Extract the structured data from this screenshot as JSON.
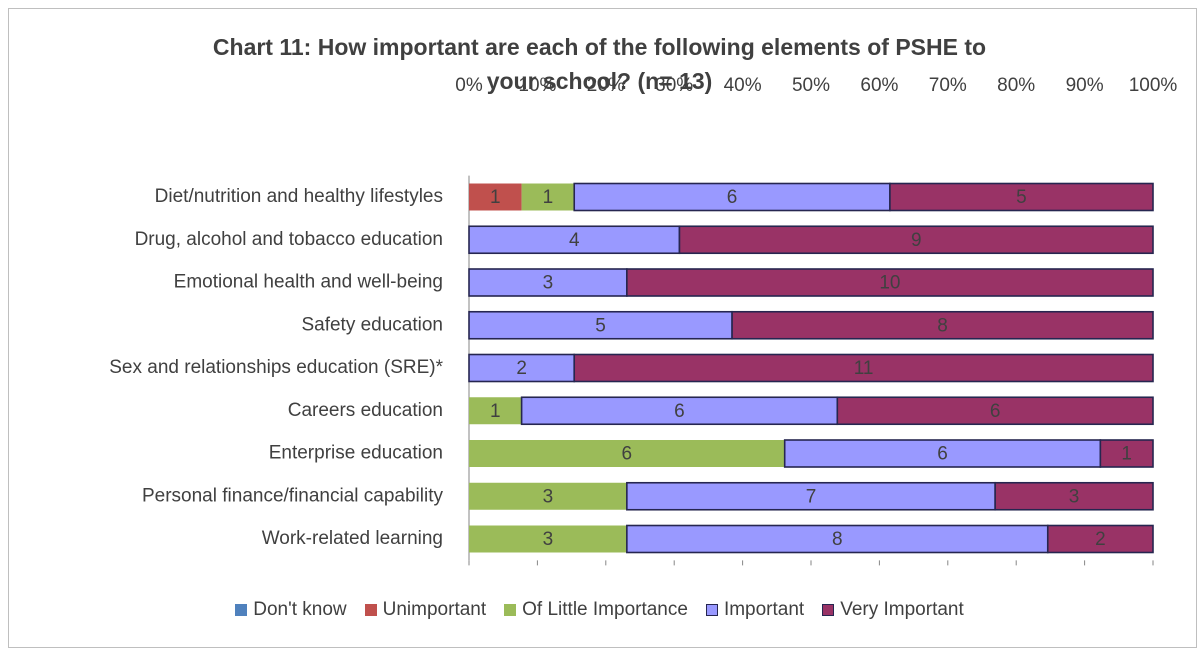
{
  "chart_data": {
    "type": "bar",
    "orientation": "horizontal",
    "stacked": "percent",
    "title_lines": [
      "Chart 11: How important are each of the following elements of PSHE to",
      "your school? (n= 13)"
    ],
    "x_ticks": [
      "0%",
      "10%",
      "20%",
      "30%",
      "40%",
      "50%",
      "60%",
      "70%",
      "80%",
      "90%",
      "100%"
    ],
    "xlim": [
      0,
      100
    ],
    "x_axis_position": "top",
    "legend_position": "bottom",
    "grid": false,
    "categories": [
      "Diet/nutrition and healthy lifestyles",
      "Drug, alcohol and tobacco education",
      "Emotional health and well-being",
      "Safety education",
      "Sex and relationships education (SRE)*",
      "Careers education",
      "Enterprise education",
      "Personal finance/financial capability",
      "Work-related learning"
    ],
    "series": [
      {
        "name": "Don't know",
        "color": "#4f81bd",
        "outlined": false,
        "values": [
          0,
          0,
          0,
          0,
          0,
          0,
          0,
          0,
          0
        ]
      },
      {
        "name": "Unimportant",
        "color": "#c0504d",
        "outlined": false,
        "values": [
          1,
          0,
          0,
          0,
          0,
          0,
          0,
          0,
          0
        ]
      },
      {
        "name": "Of Little Importance",
        "color": "#9bbb59",
        "outlined": false,
        "values": [
          1,
          0,
          0,
          0,
          0,
          1,
          6,
          3,
          3
        ]
      },
      {
        "name": "Important",
        "color": "#9999ff",
        "outlined": true,
        "values": [
          6,
          4,
          3,
          5,
          2,
          6,
          6,
          7,
          8
        ]
      },
      {
        "name": "Very Important",
        "color": "#993366",
        "outlined": true,
        "values": [
          5,
          9,
          10,
          8,
          11,
          6,
          1,
          3,
          2
        ]
      }
    ],
    "outline_color": "#262650"
  }
}
